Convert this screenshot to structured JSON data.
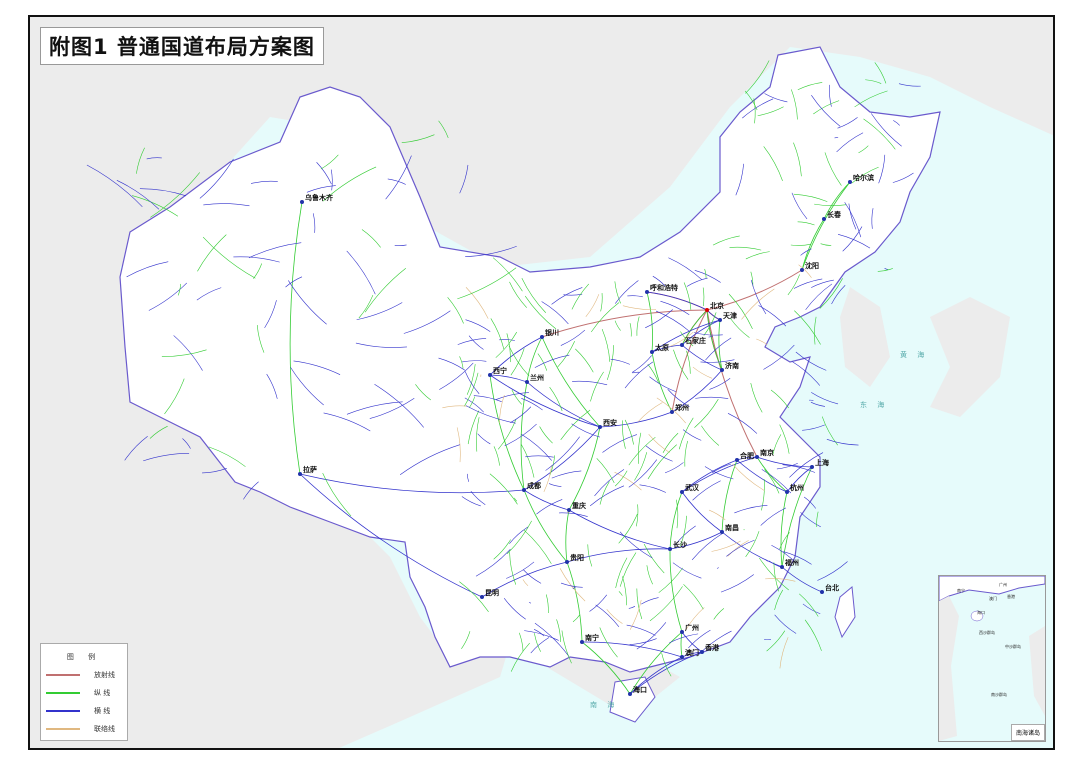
{
  "title": "附图1  普通国道布局方案图",
  "legend": {
    "heading": "图  例",
    "items": [
      {
        "label": "放射线",
        "color": "#c07070"
      },
      {
        "label": "纵 线",
        "color": "#33cc33"
      },
      {
        "label": "横 线",
        "color": "#3333cc"
      },
      {
        "label": "联络线",
        "color": "#e0b880"
      }
    ]
  },
  "cities": [
    "北京",
    "天津",
    "石家庄",
    "太原",
    "呼和浩特",
    "银川",
    "兰州",
    "西宁",
    "乌鲁木齐",
    "拉萨",
    "成都",
    "重庆",
    "西安",
    "郑州",
    "济南",
    "南京",
    "合肥",
    "上海",
    "杭州",
    "武汉",
    "长沙",
    "南昌",
    "福州",
    "台北",
    "广州",
    "香港",
    "澳门",
    "海口",
    "南宁",
    "贵阳",
    "昆明",
    "哈尔滨",
    "长春",
    "沈阳"
  ],
  "seas": [
    "东 海",
    "黄 海",
    "南 海"
  ],
  "inset": {
    "label": "南海诸岛",
    "places": [
      "广州",
      "香港",
      "澳门",
      "南宁",
      "海口",
      "西沙群岛",
      "中沙群岛",
      "南沙群岛"
    ]
  },
  "colors": {
    "sea": "#e6fbfb",
    "land_other": "#ececec",
    "china": "#ffffff",
    "border": "#6a5acd"
  }
}
